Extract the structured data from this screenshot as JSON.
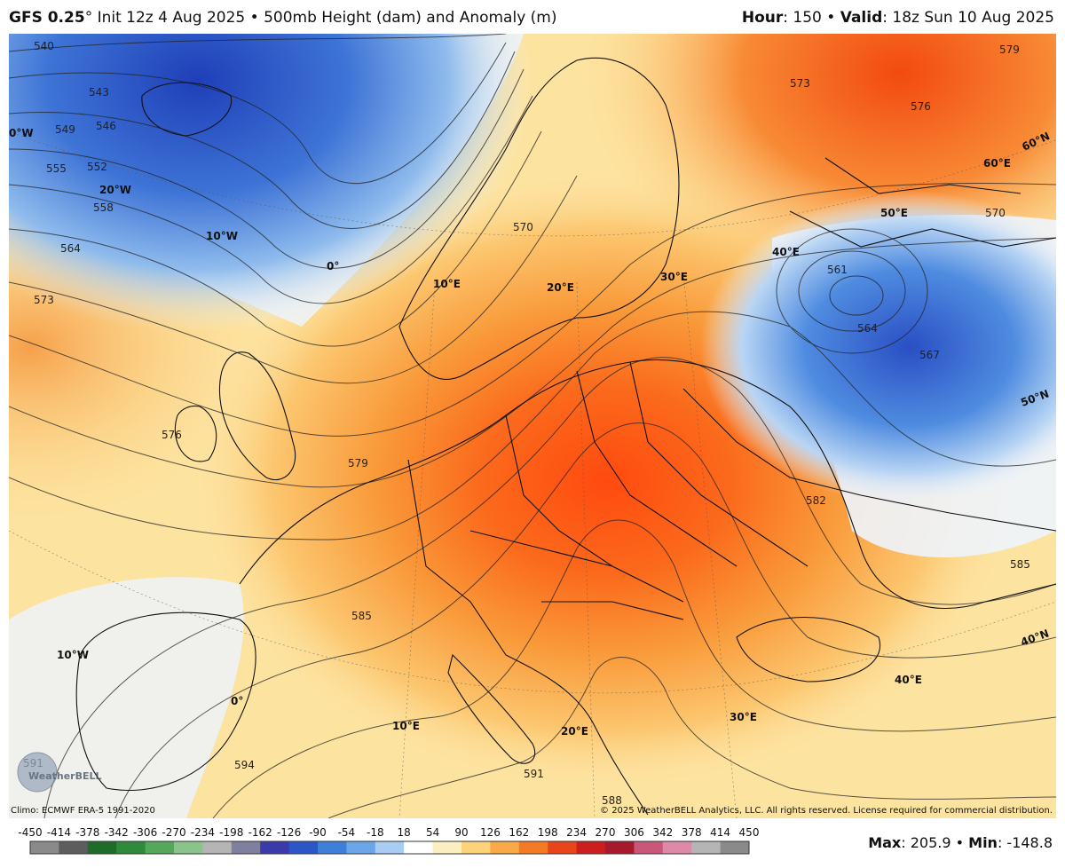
{
  "header": {
    "model": "GFS 0.25",
    "degree_symbol": "°",
    "init": " Init 12z 4 Aug 2025",
    "sep": " • ",
    "product": "500mb Height (dam) and Anomaly (m)",
    "hour_label": "Hour",
    "hour_value": ": 150",
    "valid_label": "Valid",
    "valid_value": ": 18z Sun 10 Aug 2025"
  },
  "footer": {
    "climo": "Climo: ECMWF ERA-5 1991-2020",
    "copyright": "© 2025 WeatherBELL Analytics, LLC. All rights reserved. License required for commercial distribution.",
    "max_label": "Max",
    "max_value": ": 205.9",
    "min_label": "Min",
    "min_value": ": -148.8"
  },
  "legend": {
    "ticks": [
      "-450",
      "-414",
      "-378",
      "-342",
      "-306",
      "-270",
      "-234",
      "-198",
      "-162",
      "-126",
      "-90",
      "-54",
      "-18",
      "18",
      "54",
      "90",
      "126",
      "162",
      "198",
      "234",
      "270",
      "306",
      "342",
      "378",
      "414",
      "450"
    ],
    "colors": [
      "#8a8a8a",
      "#5d5d5d",
      "#1e6b2a",
      "#2f8a3c",
      "#55a85a",
      "#8bc48a",
      "#b5b5b5",
      "#7f7f9f",
      "#3a3aa8",
      "#2c55c8",
      "#3f7fd8",
      "#6aa6e8",
      "#a8cdf2",
      "#ffffff",
      "#fbeec0",
      "#fcd27a",
      "#f9a948",
      "#f57a25",
      "#e8461a",
      "#cc1e1e",
      "#a61a2c",
      "#c8577a",
      "#dc8aa8",
      "#b5b5b5",
      "#8a8a8a"
    ]
  },
  "watermark": "WeatherBELL",
  "map": {
    "contours": [
      "540",
      "543",
      "546",
      "549",
      "552",
      "555",
      "558",
      "564",
      "573",
      "576",
      "579",
      "585",
      "588",
      "591",
      "594",
      "570",
      "573",
      "576",
      "579",
      "570",
      "561",
      "564",
      "567",
      "582",
      "585",
      "591"
    ],
    "coords": [
      "0°W",
      "20°W",
      "10°W",
      "0°",
      "10°E",
      "20°E",
      "30°E",
      "40°E",
      "50°E",
      "60°E",
      "60°N",
      "50°N",
      "40°N",
      "10°W",
      "0°",
      "10°E",
      "20°E",
      "30°E",
      "40°E"
    ]
  }
}
